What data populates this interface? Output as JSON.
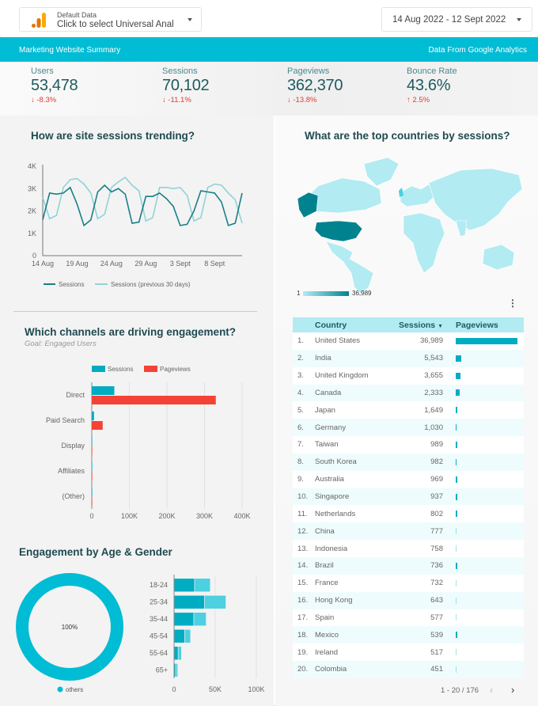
{
  "header": {
    "data_source": {
      "label": "Default Data",
      "value": "Click to select Universal Anal",
      "icon": "google-analytics-icon"
    },
    "date_range": "14 Aug 2022 - 12 Sept 2022"
  },
  "banner": {
    "title": "Marketing Website Summary",
    "source": "Data From Google Analytics",
    "color": "#00bcd4"
  },
  "kpis": [
    {
      "label": "Users",
      "value": "53,478",
      "change": "-8.3%",
      "direction": "down"
    },
    {
      "label": "Sessions",
      "value": "70,102",
      "change": "-11.1%",
      "direction": "down"
    },
    {
      "label": "Pageviews",
      "value": "362,370",
      "change": "-13.8%",
      "direction": "down"
    },
    {
      "label": "Bounce Rate",
      "value": "43.6%",
      "change": "2.5%",
      "direction": "up"
    }
  ],
  "sessions_trend": {
    "title": "How are site sessions trending?",
    "chart_data": {
      "type": "line",
      "x_ticks": [
        "14 Aug",
        "19 Aug",
        "24 Aug",
        "29 Aug",
        "3 Sept",
        "8 Sept"
      ],
      "y_ticks": [
        "0",
        "1K",
        "2K",
        "3K",
        "4K"
      ],
      "ylim": [
        0,
        4000
      ],
      "x": [
        "14 Aug",
        "15 Aug",
        "16 Aug",
        "17 Aug",
        "18 Aug",
        "19 Aug",
        "20 Aug",
        "21 Aug",
        "22 Aug",
        "23 Aug",
        "24 Aug",
        "25 Aug",
        "26 Aug",
        "27 Aug",
        "28 Aug",
        "29 Aug",
        "30 Aug",
        "31 Aug",
        "1 Sept",
        "2 Sept",
        "3 Sept",
        "4 Sept",
        "5 Sept",
        "6 Sept",
        "7 Sept",
        "8 Sept",
        "9 Sept",
        "10 Sept",
        "11 Sept",
        "12 Sept"
      ],
      "series": [
        {
          "name": "Sessions",
          "color": "#1a7f86",
          "values": [
            1600,
            2800,
            2750,
            2800,
            3050,
            2300,
            1350,
            1600,
            2850,
            3150,
            2850,
            3000,
            2750,
            1450,
            1500,
            2650,
            2650,
            2800,
            2550,
            2200,
            1350,
            1400,
            2000,
            2900,
            2850,
            2800,
            2400,
            1350,
            1450,
            2800
          ]
        },
        {
          "name": "Sessions (previous 30 days)",
          "color": "#8fd3d6",
          "values": [
            2600,
            1650,
            1800,
            3050,
            3400,
            3450,
            3200,
            2800,
            1650,
            1850,
            3050,
            3300,
            3500,
            3150,
            2900,
            1550,
            1700,
            3050,
            3050,
            3000,
            3050,
            2700,
            1550,
            1700,
            3050,
            3200,
            3150,
            2800,
            2500,
            1450
          ]
        }
      ],
      "legend": "bottom"
    }
  },
  "channels": {
    "title": "Which channels are driving engagement?",
    "subtitle": "Goal: Engaged Users",
    "chart_data": {
      "type": "bar",
      "orientation": "horizontal",
      "categories": [
        "Direct",
        "Paid Search",
        "Display",
        "Affiliates",
        "(Other)"
      ],
      "series": [
        {
          "name": "Sessions",
          "color": "#00acc1",
          "values": [
            60000,
            6000,
            1000,
            300,
            200
          ]
        },
        {
          "name": "Pageviews",
          "color": "#f44336",
          "values": [
            330000,
            29000,
            1200,
            500,
            300
          ]
        }
      ],
      "x_ticks": [
        "0",
        "100K",
        "200K",
        "300K",
        "400K"
      ],
      "xlim": [
        0,
        400000
      ],
      "legend": "top",
      "grid": true
    }
  },
  "age_gender": {
    "title": "Engagement by Age & Gender",
    "donut": {
      "type": "pie",
      "label": "100%",
      "legend": [
        {
          "name": "others",
          "color": "#00bcd4",
          "value": 100
        }
      ]
    },
    "chart_data": {
      "type": "bar",
      "orientation": "horizontal",
      "stacked": true,
      "categories": [
        "18-24",
        "25-34",
        "35-44",
        "45-54",
        "55-64",
        "65+"
      ],
      "series": [
        {
          "color": "#00acc1",
          "values": [
            25000,
            37000,
            24000,
            13000,
            5000,
            2000
          ]
        },
        {
          "color": "#4dd0e1",
          "values": [
            19000,
            26000,
            15000,
            7000,
            4000,
            2500
          ]
        }
      ],
      "x_ticks": [
        "0",
        "50K",
        "100K"
      ],
      "xlim": [
        0,
        125000
      ],
      "grid": true
    }
  },
  "countries": {
    "title": "What are the top countries by sessions?",
    "map_legend": {
      "min": "1",
      "max": "36,989",
      "color_low": "#b2ebf2",
      "color_high": "#00838f"
    },
    "menu_icon": "more-vert-icon",
    "columns": [
      "Country",
      "Sessions",
      "Pageviews"
    ],
    "sort_icon": "sort-desc-icon",
    "rows": [
      {
        "rank": "1.",
        "country": "United States",
        "sessions": "36,989",
        "pageviews_share": 1.0
      },
      {
        "rank": "2.",
        "country": "India",
        "sessions": "5,543",
        "pageviews_share": 0.09
      },
      {
        "rank": "3.",
        "country": "United Kingdom",
        "sessions": "3,655",
        "pageviews_share": 0.08
      },
      {
        "rank": "4.",
        "country": "Canada",
        "sessions": "2,333",
        "pageviews_share": 0.06
      },
      {
        "rank": "5.",
        "country": "Japan",
        "sessions": "1,649",
        "pageviews_share": 0.025
      },
      {
        "rank": "6.",
        "country": "Germany",
        "sessions": "1,030",
        "pageviews_share": 0.015
      },
      {
        "rank": "7.",
        "country": "Taiwan",
        "sessions": "989",
        "pageviews_share": 0.025
      },
      {
        "rank": "8.",
        "country": "South Korea",
        "sessions": "982",
        "pageviews_share": 0.015
      },
      {
        "rank": "9.",
        "country": "Australia",
        "sessions": "969",
        "pageviews_share": 0.02
      },
      {
        "rank": "10.",
        "country": "Singapore",
        "sessions": "937",
        "pageviews_share": 0.02
      },
      {
        "rank": "11.",
        "country": "Netherlands",
        "sessions": "802",
        "pageviews_share": 0.02
      },
      {
        "rank": "12.",
        "country": "China",
        "sessions": "777",
        "pageviews_share": 0.012
      },
      {
        "rank": "13.",
        "country": "Indonesia",
        "sessions": "758",
        "pageviews_share": 0.012
      },
      {
        "rank": "14.",
        "country": "Brazil",
        "sessions": "736",
        "pageviews_share": 0.02
      },
      {
        "rank": "15.",
        "country": "France",
        "sessions": "732",
        "pageviews_share": 0.012
      },
      {
        "rank": "16.",
        "country": "Hong Kong",
        "sessions": "643",
        "pageviews_share": 0.012
      },
      {
        "rank": "17.",
        "country": "Spain",
        "sessions": "577",
        "pageviews_share": 0.012
      },
      {
        "rank": "18.",
        "country": "Mexico",
        "sessions": "539",
        "pageviews_share": 0.02
      },
      {
        "rank": "19.",
        "country": "Ireland",
        "sessions": "517",
        "pageviews_share": 0.012
      },
      {
        "rank": "20.",
        "country": "Colombia",
        "sessions": "451",
        "pageviews_share": 0.012
      }
    ],
    "pagination": "1 - 20 / 176"
  }
}
